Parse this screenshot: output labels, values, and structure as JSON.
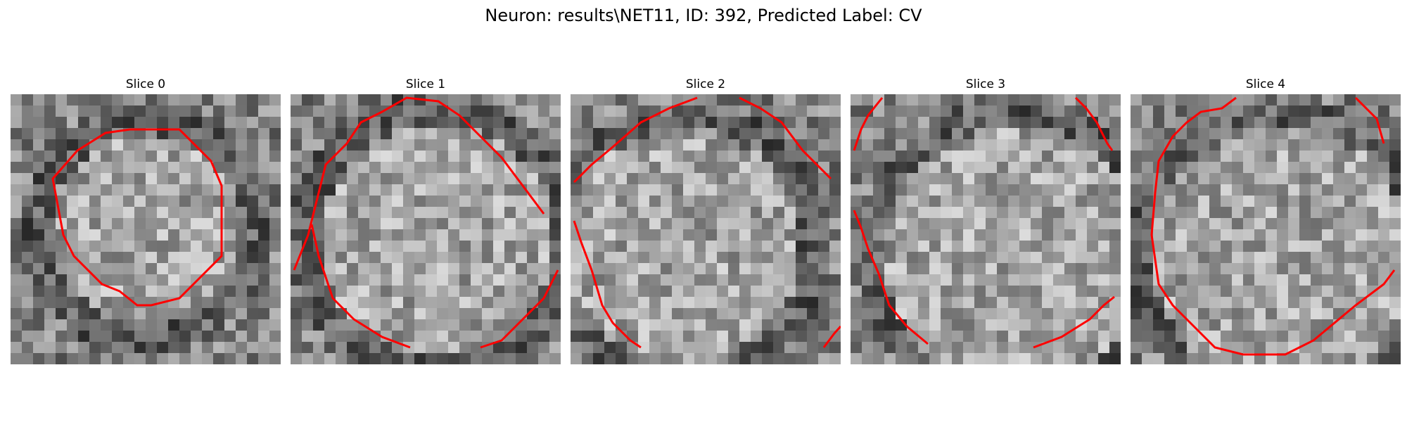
{
  "figure": {
    "title": "Neuron: results\\NET11, ID: 392, Predicted Label: CV",
    "contour_color": "#ff0000"
  },
  "panels": [
    {
      "title": "Slice 0"
    },
    {
      "title": "Slice 1"
    },
    {
      "title": "Slice 2"
    },
    {
      "title": "Slice 3"
    },
    {
      "title": "Slice 4"
    }
  ]
}
